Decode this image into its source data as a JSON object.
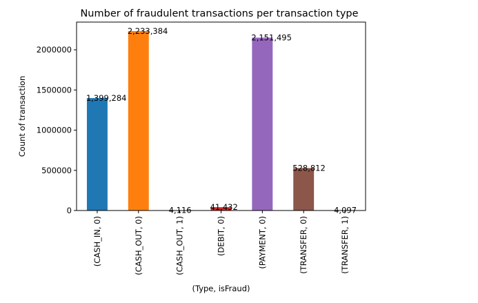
{
  "chart_data": {
    "type": "bar",
    "title": "Number of fraudulent transactions per transaction type",
    "xlabel": "(Type, isFraud)",
    "ylabel": "Count of transaction",
    "categories": [
      "(CASH_IN, 0)",
      "(CASH_OUT, 0)",
      "(CASH_OUT, 1)",
      "(DEBIT, 0)",
      "(PAYMENT, 0)",
      "(TRANSFER, 0)",
      "(TRANSFER, 1)"
    ],
    "values": [
      1399284,
      2233384,
      4116,
      41432,
      2151495,
      528812,
      4097
    ],
    "value_labels": [
      "1,399,284",
      "2,233,384",
      "4,116",
      "41,432",
      "2,151,495",
      "528,812",
      "4,097"
    ],
    "colors": [
      "#1f77b4",
      "#ff7f0e",
      "#2ca02c",
      "#d62728",
      "#9467bd",
      "#8c564b",
      "#e377c2"
    ],
    "ylim": [
      0,
      2345053
    ],
    "yticks": [
      0,
      500000,
      1000000,
      1500000,
      2000000
    ],
    "ytick_labels": [
      "0",
      "500000",
      "1000000",
      "1500000",
      "2000000"
    ],
    "grid": false,
    "legend": "none"
  }
}
